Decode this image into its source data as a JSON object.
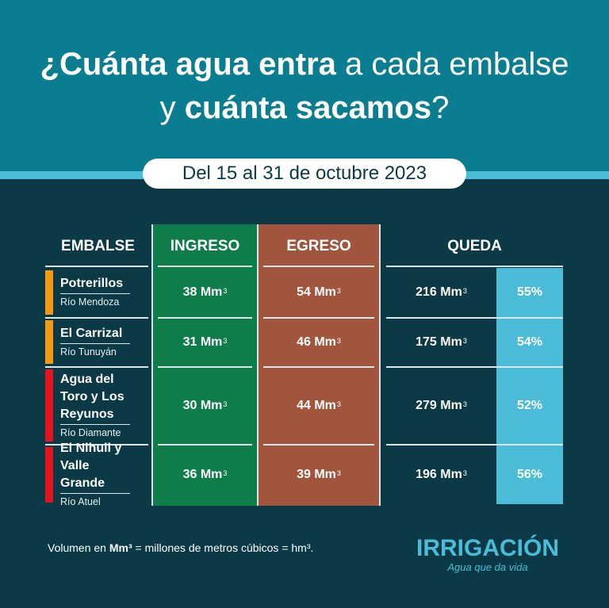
{
  "title": {
    "line1_bold": "¿Cuánta agua entra",
    "line1_rest": " a cada embalse",
    "line2_pre": "y ",
    "line2_bold": "cuánta sacamos",
    "line2_end": "?"
  },
  "period": "Del 15 al 31 de octubre 2023",
  "headers": {
    "embalse": "EMBALSE",
    "ingreso": "INGRESO",
    "egreso": "EGRESO",
    "queda": "QUEDA"
  },
  "unit": "Mm",
  "unit_sup": "3",
  "colors": {
    "header": "#0a7d90",
    "stripe": "#4bbcd8",
    "background": "#0b3a46",
    "ingreso": "#0e7d49",
    "egreso": "#a1553c",
    "queda_pct": "#4bbcd8",
    "status_orange": "#f39a10",
    "status_red": "#e3141b"
  },
  "rows": [
    {
      "name": "Potrerillos",
      "river": "Río Mendoza",
      "ingreso": "38",
      "egreso": "54",
      "queda": "216",
      "pct": "55%",
      "status": "orange"
    },
    {
      "name": "El Carrizal",
      "river": "Río Tunuyán",
      "ingreso": "31",
      "egreso": "46",
      "queda": "175",
      "pct": "54%",
      "status": "orange"
    },
    {
      "name": "Agua del Toro y Los Reyunos",
      "river": "Río Diamante",
      "ingreso": "30",
      "egreso": "44",
      "queda": "279",
      "pct": "52%",
      "status": "red"
    },
    {
      "name": "El Nihuil y Valle Grande",
      "river": "Río Atuel",
      "ingreso": "36",
      "egreso": "39",
      "queda": "196",
      "pct": "56%",
      "status": "red"
    }
  ],
  "footnote": {
    "pre": "Volumen en ",
    "bold": "Mm³",
    "post": " = millones de metros cúbicos = hm³."
  },
  "logo": {
    "name": "IRRIGACIÓN",
    "tagline": "Agua que da vida"
  }
}
